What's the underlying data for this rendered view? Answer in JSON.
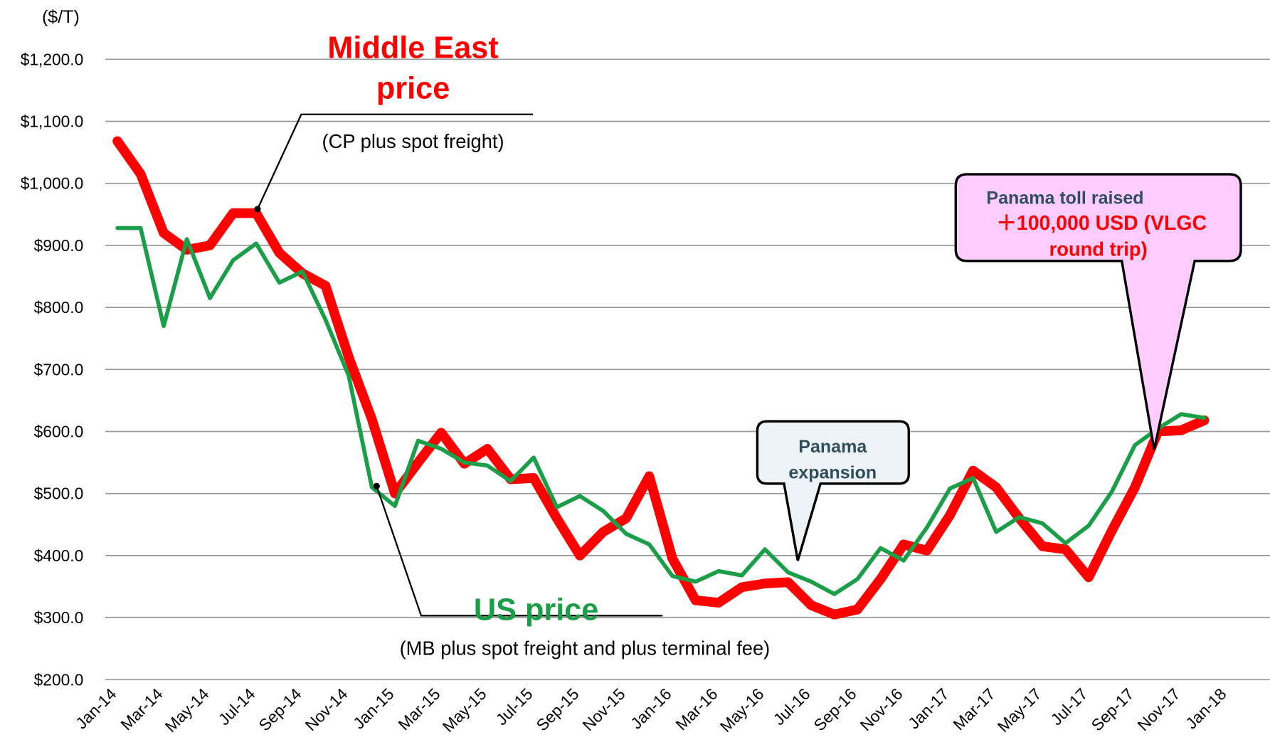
{
  "chart_data": {
    "type": "line",
    "y_label": "($/T)",
    "categories": [
      "Jan-14",
      null,
      "Mar-14",
      null,
      "May-14",
      null,
      "Jul-14",
      null,
      "Sep-14",
      null,
      "Nov-14",
      null,
      "Jan-15",
      null,
      "Mar-15",
      null,
      "May-15",
      null,
      "Jul-15",
      null,
      "Sep-15",
      null,
      "Nov-15",
      null,
      "Jan-16",
      null,
      "Mar-16",
      null,
      "May-16",
      null,
      "Jul-16",
      null,
      "Sep-16",
      null,
      "Nov-16",
      null,
      "Jan-17",
      null,
      "Mar-17",
      null,
      "May-17",
      null,
      "Jul-17",
      null,
      "Sep-17",
      null,
      "Nov-17",
      null,
      "Jan-18"
    ],
    "series": [
      {
        "name": "Middle East price",
        "color": "#ff0000",
        "values": [
          1068,
          1015,
          920,
          893,
          900,
          952,
          952,
          888,
          855,
          835,
          720,
          620,
          500,
          550,
          598,
          548,
          572,
          523,
          525,
          460,
          400,
          438,
          460,
          528,
          395,
          328,
          324,
          349,
          355,
          357,
          320,
          305,
          313,
          362,
          418,
          408,
          465,
          537,
          510,
          460,
          415,
          410,
          365,
          440,
          510,
          600,
          602,
          618,
          null
        ]
      },
      {
        "name": "US price",
        "color": "#1a9e48",
        "values": [
          928,
          928,
          770,
          910,
          815,
          876,
          903,
          840,
          858,
          780,
          690,
          510,
          480,
          585,
          572,
          550,
          545,
          520,
          558,
          478,
          496,
          472,
          435,
          418,
          367,
          358,
          375,
          368,
          410,
          373,
          358,
          338,
          362,
          412,
          392,
          445,
          508,
          525,
          438,
          462,
          452,
          420,
          448,
          503,
          578,
          605,
          628,
          622,
          null
        ]
      }
    ],
    "ylim": [
      200,
      1200
    ],
    "yticks": [
      {
        "value": 200,
        "label": "$200.0"
      },
      {
        "value": 300,
        "label": "$300.0"
      },
      {
        "value": 400,
        "label": "$400.0"
      },
      {
        "value": 500,
        "label": "$500.0"
      },
      {
        "value": 600,
        "label": "$600.0"
      },
      {
        "value": 700,
        "label": "$700.0"
      },
      {
        "value": 800,
        "label": "$800.0"
      },
      {
        "value": 900,
        "label": "$900.0"
      },
      {
        "value": 1000,
        "label": "$1,000.0"
      },
      {
        "value": 1100,
        "label": "$1,100.0"
      },
      {
        "value": 1200,
        "label": "$1,200.0"
      }
    ],
    "grid": true,
    "annotations": [
      {
        "lines": [
          "Middle East",
          "price"
        ]
      },
      {
        "lines": [
          "(CP plus spot freight)"
        ]
      },
      {
        "lines": [
          "US price"
        ]
      },
      {
        "lines": [
          "(MB plus spot freight and plus terminal fee)"
        ]
      },
      {
        "lines": [
          "Panama",
          "expansion"
        ]
      },
      {
        "lines": [
          "Panama toll raised",
          "＋100,000 USD (VLGC",
          "round trip)"
        ]
      }
    ]
  }
}
